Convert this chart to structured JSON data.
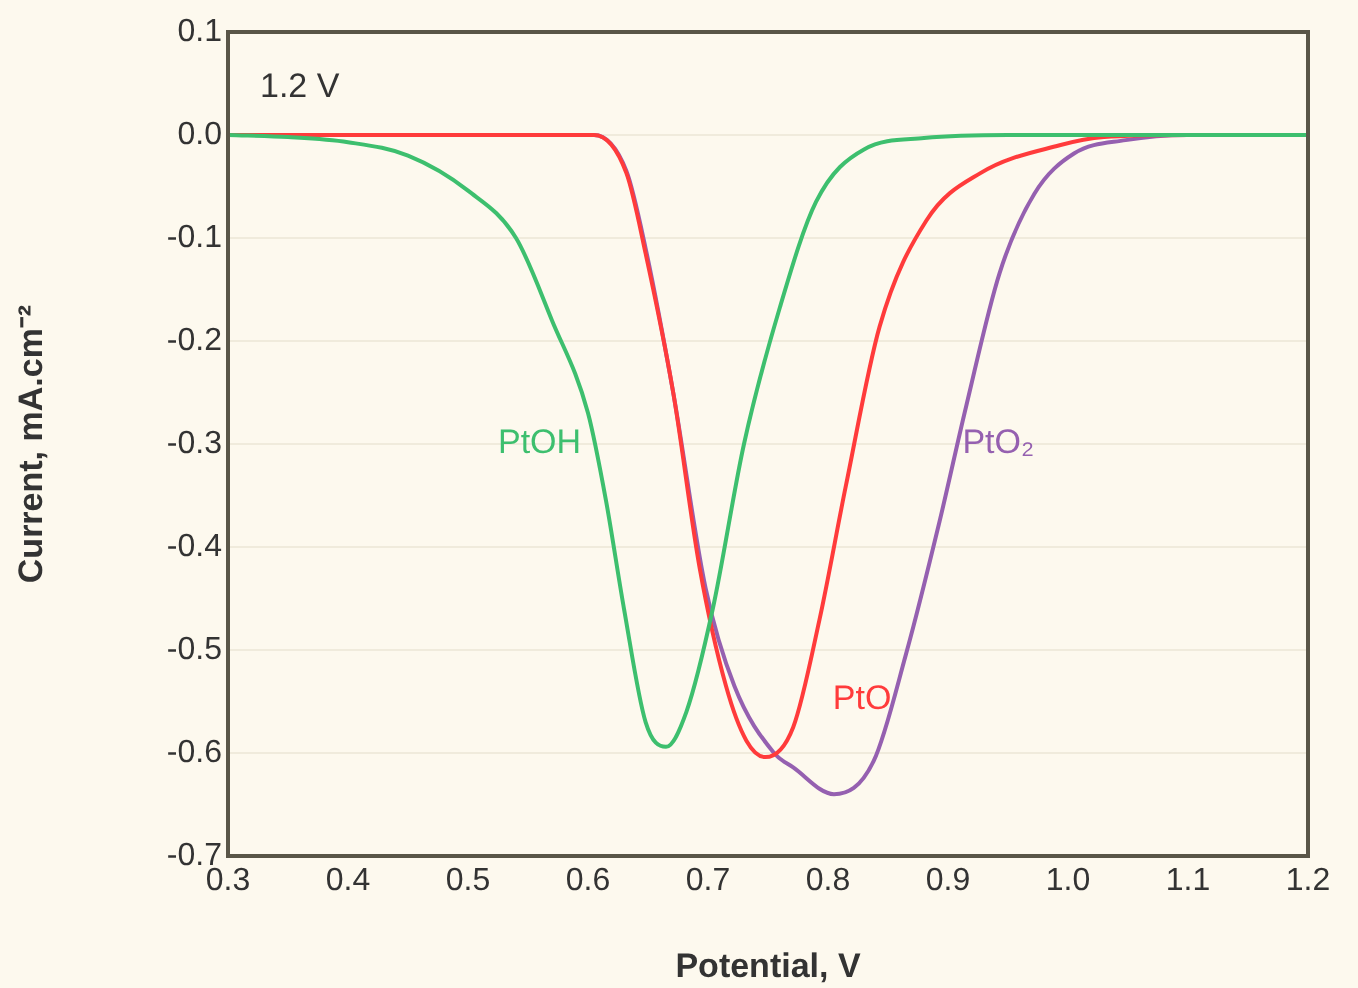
{
  "chart_data": {
    "type": "line",
    "xlabel": "Potential, V",
    "ylabel": "Current, mA.cm⁻²",
    "annotations": [
      "1.2 V"
    ],
    "xlim": [
      0.3,
      1.2
    ],
    "xticks": [
      {
        "value": 0.3,
        "label": "0.3"
      },
      {
        "value": 0.4,
        "label": "0.4"
      },
      {
        "value": 0.5,
        "label": "0.5"
      },
      {
        "value": 0.6,
        "label": "0.6"
      },
      {
        "value": 0.7,
        "label": "0.7"
      },
      {
        "value": 0.8,
        "label": "0.8"
      },
      {
        "value": 0.9,
        "label": "0.9"
      },
      {
        "value": 1.0,
        "label": "1.0"
      },
      {
        "value": 1.1,
        "label": "1.1"
      },
      {
        "value": 1.2,
        "label": "1.2"
      }
    ],
    "ylim": [
      -0.7,
      0.1
    ],
    "yticks": [
      {
        "value": -0.7,
        "label": "-0.7"
      },
      {
        "value": -0.6,
        "label": "-0.6"
      },
      {
        "value": -0.5,
        "label": "-0.5"
      },
      {
        "value": -0.4,
        "label": "-0.4"
      },
      {
        "value": -0.3,
        "label": "-0.3"
      },
      {
        "value": -0.2,
        "label": "-0.2"
      },
      {
        "value": -0.1,
        "label": "-0.1"
      },
      {
        "value": 0,
        "label": "0.0"
      },
      {
        "value": 0.1,
        "label": "0.1"
      }
    ],
    "grid": "y",
    "legend": false,
    "marker": "none",
    "line_style": "solid",
    "series": [
      {
        "name": "PtOH",
        "color": "#3dbf6e",
        "x": [
          0.3,
          0.35,
          0.4,
          0.45,
          0.5,
          0.54,
          0.57,
          0.6,
          0.615,
          0.63,
          0.648,
          0.665,
          0.682,
          0.704,
          0.73,
          0.76,
          0.79,
          0.83,
          0.88,
          0.95,
          1.2
        ],
        "values": [
          0,
          -0.002,
          -0.007,
          -0.02,
          -0.054,
          -0.1,
          -0.18,
          -0.27,
          -0.355,
          -0.46,
          -0.57,
          -0.594,
          -0.56,
          -0.46,
          -0.3,
          -0.167,
          -0.065,
          -0.014,
          -0.003,
          0,
          0
        ]
      },
      {
        "name": "PtO",
        "color": "#ff3b3b",
        "x": [
          0.3,
          0.605,
          0.632,
          0.648,
          0.671,
          0.693,
          0.715,
          0.732,
          0.748,
          0.771,
          0.793,
          0.815,
          0.843,
          0.882,
          0.927,
          0.993,
          1.03,
          1.1,
          1.2
        ],
        "values": [
          0,
          0,
          -0.037,
          -0.115,
          -0.25,
          -0.42,
          -0.535,
          -0.588,
          -0.604,
          -0.575,
          -0.47,
          -0.34,
          -0.186,
          -0.083,
          -0.037,
          -0.01,
          -0.002,
          0,
          0
        ]
      },
      {
        "name": "PtO₂",
        "color": "#9560b0",
        "x": [
          0.3,
          0.605,
          0.632,
          0.648,
          0.671,
          0.698,
          0.722,
          0.755,
          0.771,
          0.805,
          0.838,
          0.865,
          0.893,
          0.915,
          0.943,
          0.972,
          1.005,
          1.048,
          1.1,
          1.2
        ],
        "values": [
          0,
          0,
          -0.035,
          -0.11,
          -0.25,
          -0.44,
          -0.535,
          -0.6,
          -0.614,
          -0.64,
          -0.608,
          -0.504,
          -0.375,
          -0.264,
          -0.134,
          -0.057,
          -0.018,
          -0.005,
          0,
          0
        ]
      }
    ]
  }
}
